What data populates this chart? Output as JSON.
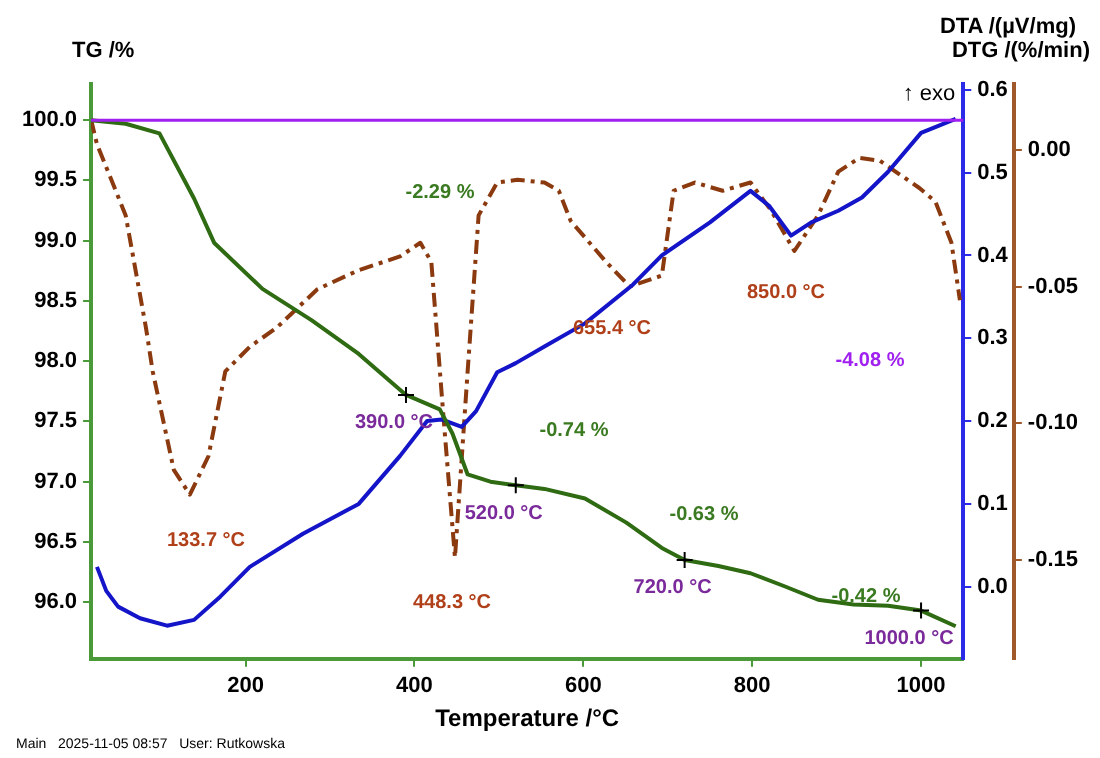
{
  "chart_data": {
    "type": "line",
    "xlabel": "Temperature /°C",
    "ylabel": "TG /%",
    "y2label": "DTA /(µV/mg)",
    "y3label": "DTG /(%/min)",
    "xlim": [
      17,
      1050
    ],
    "xticks": [
      200,
      400,
      600,
      800,
      1000
    ],
    "ylim": [
      95.53,
      100.3
    ],
    "yticks": [
      {
        "value": 96,
        "label": "96.0"
      },
      96.5,
      {
        "value": 97,
        "label": "97.0"
      },
      97.5,
      {
        "value": 98,
        "label": "98.0"
      },
      98.5,
      {
        "value": 99,
        "label": "99.0"
      },
      99.5,
      {
        "value": 100,
        "label": "100.0"
      }
    ],
    "y2lim": [
      -0.087,
      0.607
    ],
    "y2ticks": [
      {
        "value": 0,
        "label": "0.0"
      },
      0.1,
      0.2,
      0.3,
      0.4,
      0.5,
      0.6
    ],
    "y3lim": [
      -0.186,
      0.024
    ],
    "y3ticks": [
      -0.15,
      {
        "value": -0.1,
        "label": "-0.10"
      },
      -0.05,
      {
        "value": 0,
        "label": "0.00"
      }
    ],
    "grid": false,
    "legend": false,
    "marker": "none",
    "series": [
      {
        "color": "#2e6b12",
        "line_style": "solid",
        "x": [
          17,
          58,
          98,
          139,
          163,
          220,
          278,
          334,
          390,
          430,
          445,
          463,
          490,
          520,
          554,
          602,
          651,
          693,
          720,
          760,
          798,
          839,
          878,
          920,
          961,
          1000,
          1041
        ],
        "values": [
          100.0,
          99.97,
          99.89,
          99.35,
          98.98,
          98.6,
          98.34,
          98.06,
          97.72,
          97.6,
          97.4,
          97.06,
          97.0,
          96.97,
          96.94,
          96.86,
          96.66,
          96.45,
          96.35,
          96.3,
          96.24,
          96.13,
          96.02,
          95.98,
          95.97,
          95.93,
          95.8
        ]
      },
      {
        "color": "#1414c8",
        "axis": "y2",
        "line_style": "solid",
        "x": [
          24,
          35,
          49,
          75,
          107,
          139,
          170,
          205,
          268,
          334,
          383,
          415,
          432,
          456,
          473,
          498,
          520,
          554,
          602,
          659,
          693,
          750,
          798,
          820,
          846,
          870,
          902,
          930,
          961,
          1000,
          1041
        ],
        "values": [
          0.024,
          -0.005,
          -0.024,
          -0.038,
          -0.047,
          -0.04,
          -0.012,
          0.024,
          0.064,
          0.1,
          0.158,
          0.2,
          0.202,
          0.193,
          0.212,
          0.259,
          0.27,
          0.29,
          0.318,
          0.365,
          0.4,
          0.44,
          0.478,
          0.46,
          0.424,
          0.44,
          0.454,
          0.47,
          0.501,
          0.548,
          0.565
        ]
      },
      {
        "color": "#8b3a0f",
        "axis": "y3",
        "line_style": "dashed",
        "x": [
          17,
          24,
          58,
          82,
          90,
          115,
          134,
          156,
          176,
          205,
          237,
          285,
          334,
          383,
          407,
          420,
          435,
          448,
          463,
          476,
          498,
          522,
          554,
          571,
          585,
          627,
          655,
          693,
          707,
          732,
          765,
          798,
          822,
          850,
          878,
          902,
          927,
          951,
          998,
          1017,
          1036,
          1046
        ],
        "values": [
          0.011,
          0.002,
          -0.024,
          -0.065,
          -0.081,
          -0.117,
          -0.126,
          -0.112,
          -0.081,
          -0.072,
          -0.065,
          -0.051,
          -0.044,
          -0.039,
          -0.034,
          -0.041,
          -0.1,
          -0.149,
          -0.081,
          -0.024,
          -0.012,
          -0.011,
          -0.012,
          -0.015,
          -0.026,
          -0.041,
          -0.05,
          -0.046,
          -0.015,
          -0.012,
          -0.015,
          -0.012,
          -0.022,
          -0.037,
          -0.024,
          -0.008,
          -0.003,
          -0.004,
          -0.014,
          -0.019,
          -0.034,
          -0.055
        ]
      }
    ],
    "ref_lines": [
      {
        "axis": "y",
        "value": 100,
        "color": "#a020f0"
      }
    ],
    "annotations": [
      "133.7 °C",
      {
        "text": "390.0 °C",
        "x": 390,
        "y": 97.72
      },
      "448.3 °C",
      {
        "text": "520.0 °C",
        "x": 520,
        "y": 96.97
      },
      "655.4 °C",
      {
        "text": "720.0 °C",
        "x": 720,
        "y": 96.35
      },
      "850.0 °C",
      {
        "text": "1000.0 °C",
        "x": 1000,
        "y": 95.93
      },
      "-2.29 %",
      "-0.74 %",
      "-0.63 %",
      "-0.42 %",
      "-4.08 %",
      "↑ exo",
      "Main   2025-11-05 08:57   User: Rutkowska"
    ]
  }
}
